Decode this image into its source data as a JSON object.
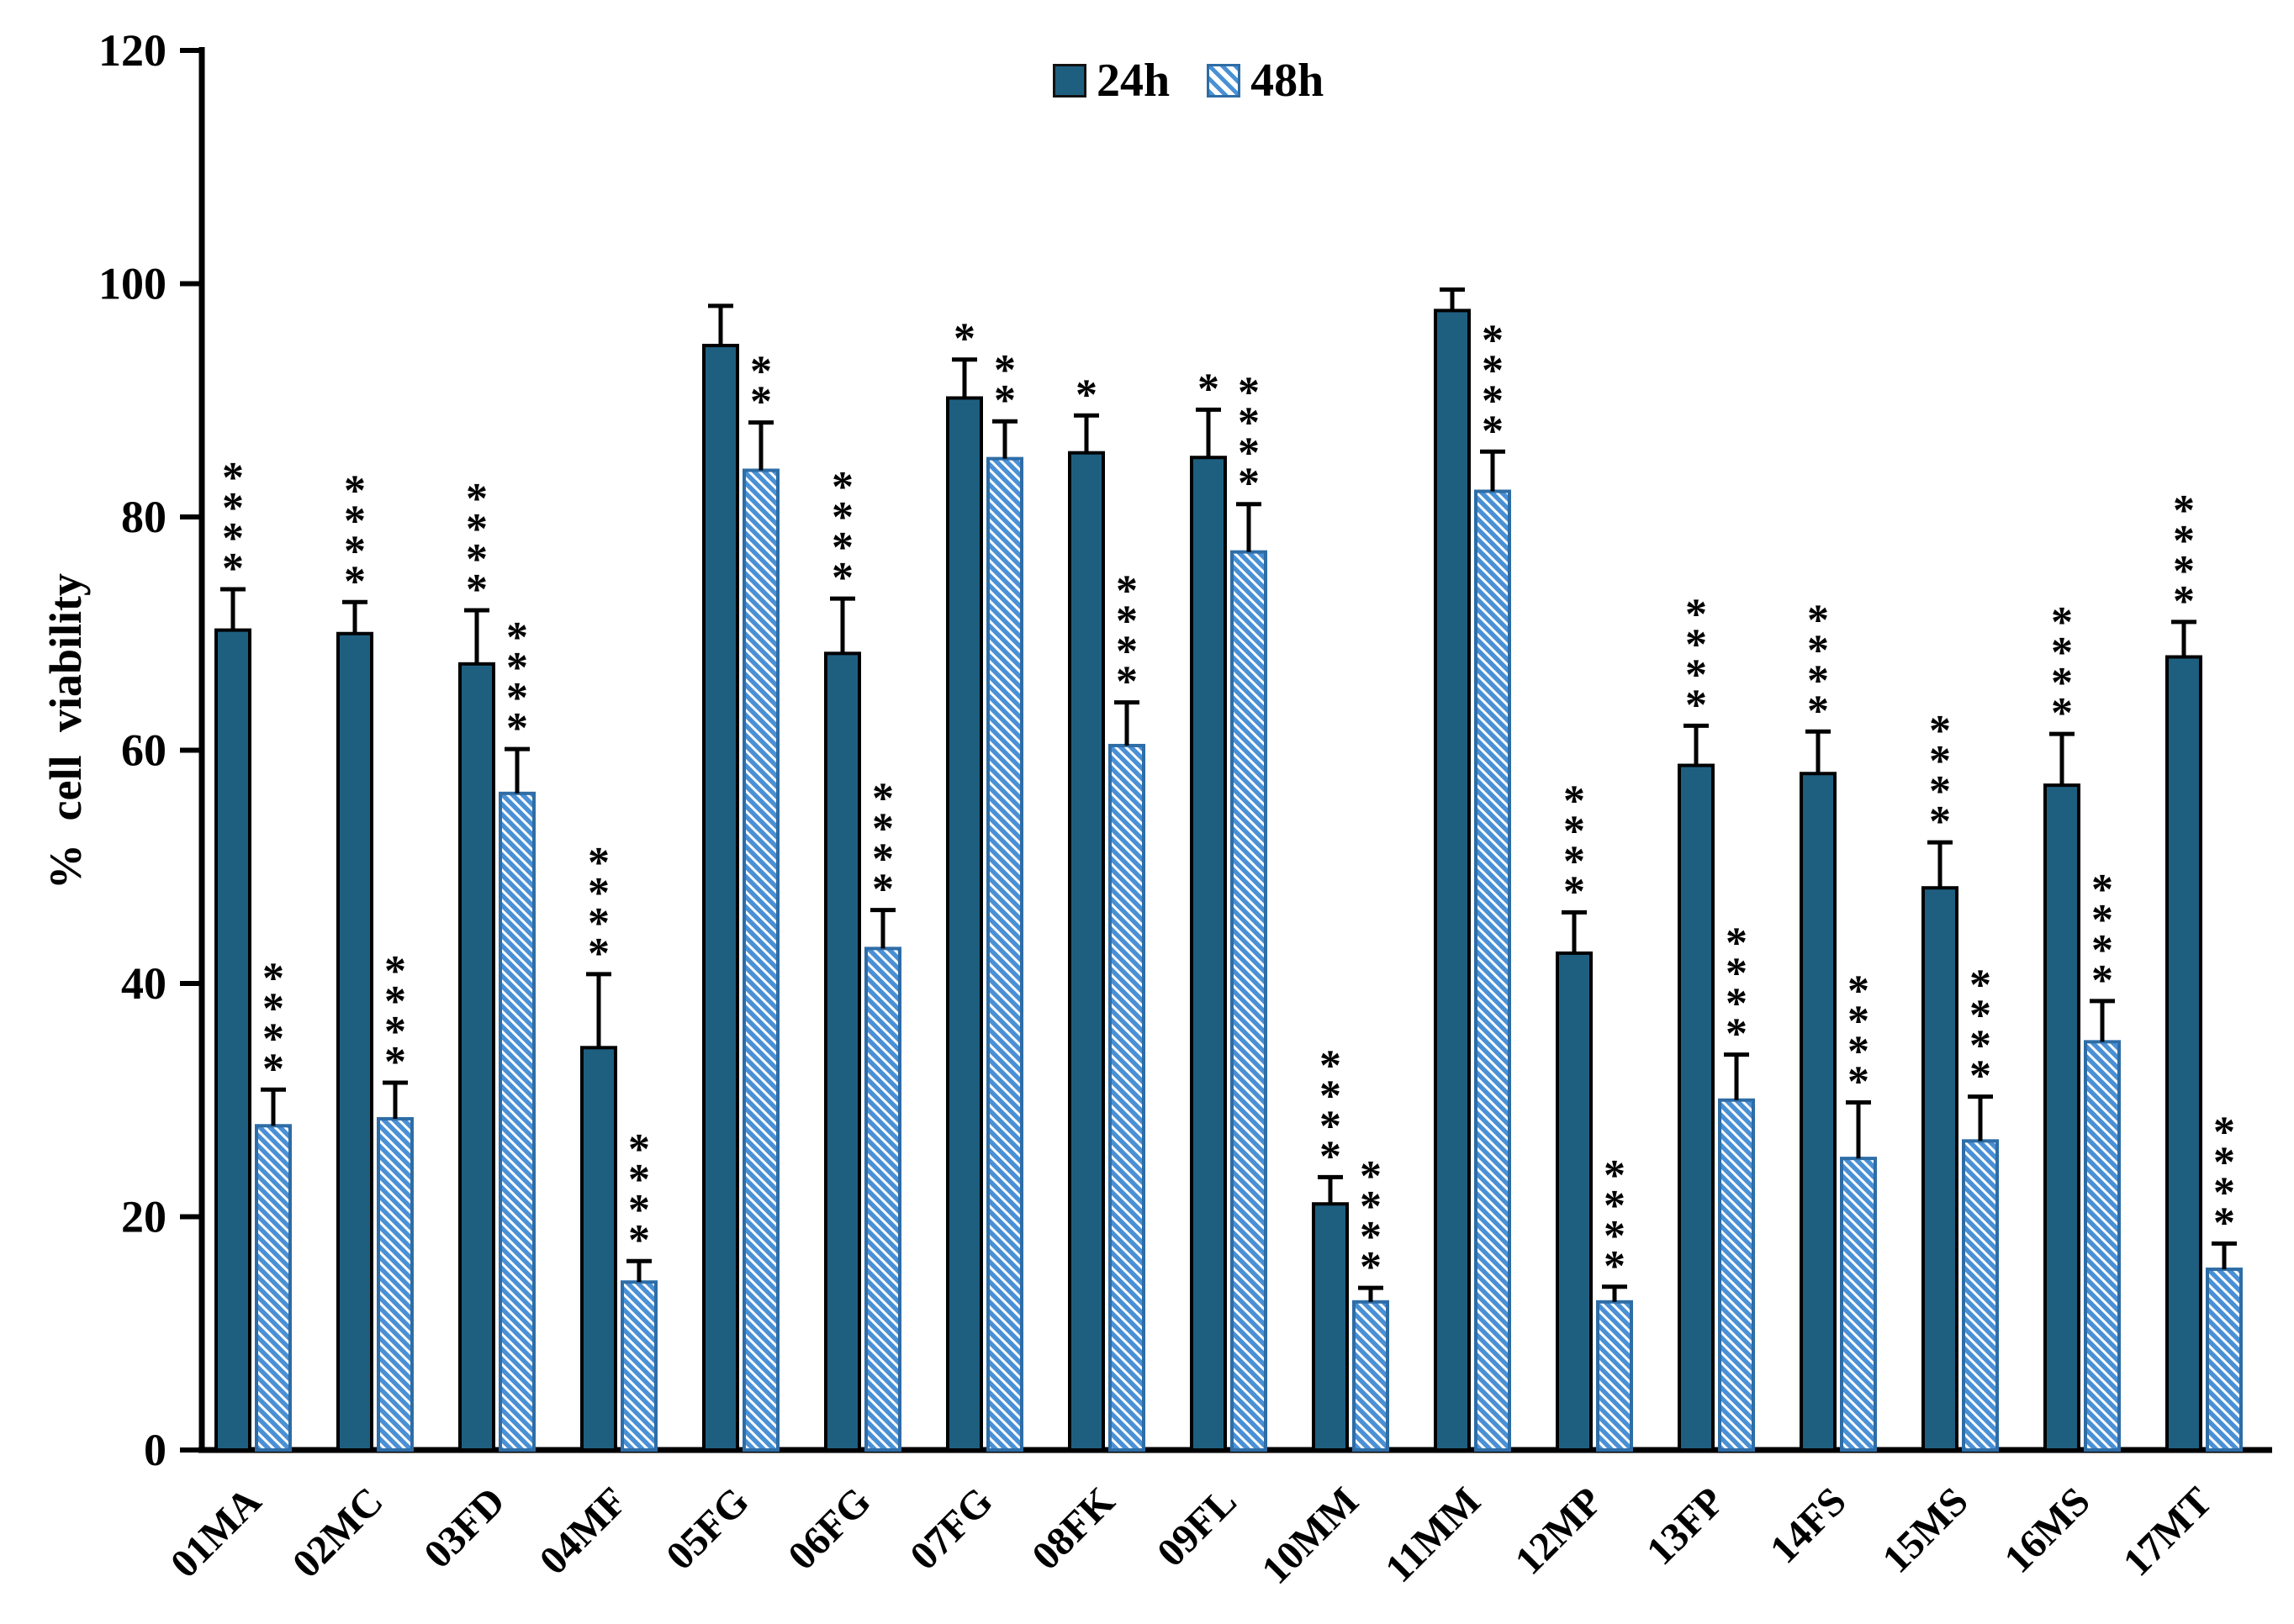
{
  "legend": [
    {
      "label": "24h"
    },
    {
      "label": "48h"
    }
  ],
  "colors": {
    "bar24_fill": "#1E5F80",
    "bar24_border": "#000000",
    "bar48_stripe": "#4A90D5",
    "bar48_background": "#FFFFFF",
    "bar48_border": "#2E6DA6",
    "axis": "#000000",
    "text": "#000000"
  },
  "chart_data": {
    "type": "bar",
    "title": "",
    "xlabel": "",
    "ylabel": "% cell viability",
    "ylim": [
      0,
      120
    ],
    "yticks": [
      0,
      20,
      40,
      60,
      80,
      100,
      120
    ],
    "grid": false,
    "error_bars": true,
    "legend_position": "top-center",
    "significance_note": "asterisk columns above error bars",
    "categories": [
      "01MA",
      "02MC",
      "03FD",
      "04MF",
      "05FG",
      "06FG",
      "07FG",
      "08FK",
      "09FL",
      "10MM",
      "11MM",
      "12MP",
      "13FP",
      "14FS",
      "15MS",
      "16MS",
      "17MT"
    ],
    "series": [
      {
        "name": "24h",
        "style": "solid",
        "values": [
          70.3,
          70.0,
          67.4,
          34.5,
          94.7,
          68.3,
          90.2,
          85.5,
          85.1,
          21.1,
          97.7,
          42.6,
          58.7,
          58.0,
          48.2,
          57.0,
          68.0
        ],
        "errors": [
          3.5,
          2.7,
          4.6,
          6.3,
          3.4,
          4.7,
          3.3,
          3.2,
          4.1,
          2.3,
          1.8,
          3.5,
          3.4,
          3.6,
          3.9,
          4.4,
          3.0
        ],
        "sig": [
          "****",
          "****",
          "****",
          "****",
          "",
          "****",
          "*",
          "*",
          "*",
          "****",
          "",
          "****",
          "****",
          "****",
          "****",
          "****",
          "****"
        ]
      },
      {
        "name": "48h",
        "style": "hatched",
        "values": [
          27.8,
          28.4,
          56.3,
          14.4,
          84.0,
          43.0,
          85.0,
          60.4,
          77.0,
          12.7,
          82.2,
          12.7,
          30.0,
          25.0,
          26.5,
          35.0,
          15.5
        ],
        "errors": [
          3.1,
          3.1,
          3.8,
          1.8,
          4.1,
          3.3,
          3.2,
          3.7,
          4.1,
          1.2,
          3.4,
          1.3,
          3.9,
          4.8,
          3.8,
          3.5,
          2.2
        ],
        "sig": [
          "****",
          "****",
          "****",
          "****",
          "**",
          "****",
          "**",
          "****",
          "****",
          "****",
          "****",
          "****",
          "****",
          "****",
          "****",
          "****",
          "****"
        ]
      }
    ]
  }
}
